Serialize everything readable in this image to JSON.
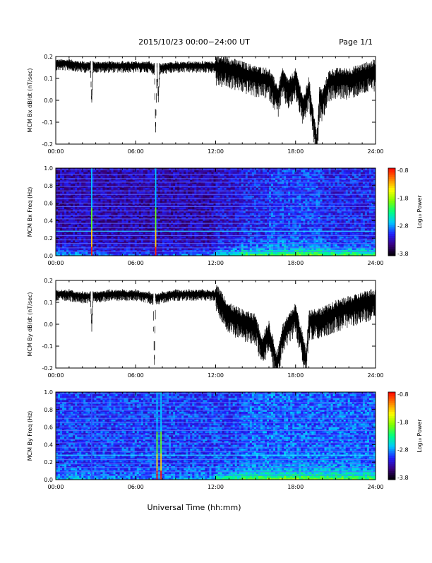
{
  "header": {
    "title": "2015/10/23  00:00−24:00 UT",
    "page": "Page 1/1"
  },
  "xaxis": {
    "label": "Universal Time (hh:mm)",
    "ticks": [
      "00:00",
      "06:00",
      "12:00",
      "18:00",
      "24:00"
    ]
  },
  "colorbar": {
    "label": "Log₁₀ Power",
    "ticks": [
      "-0.8",
      "-1.8",
      "-2.8",
      "-3.8"
    ],
    "range": [
      -3.8,
      -0.8
    ],
    "colormap": [
      "#000000",
      "#3a0080",
      "#2020ff",
      "#00c8ff",
      "#00ff80",
      "#80ff00",
      "#ffff00",
      "#ff8000",
      "#ff0000"
    ]
  },
  "chart_data": [
    {
      "type": "line",
      "ylabel": "MCM Bx dB/dt (nT/sec)",
      "yticks": [
        "0.2",
        "0.1",
        "0.0",
        "-0.1",
        "-0.2"
      ],
      "xlim": [
        0,
        24
      ],
      "ylim": [
        -0.2,
        0.2
      ],
      "series": [
        {
          "x": [
            0,
            1,
            2,
            2.6,
            2.7,
            2.8,
            4,
            5,
            6,
            7,
            7.4,
            7.5,
            7.6,
            7.7,
            7.8,
            9,
            10,
            11,
            12,
            13,
            14,
            15,
            16,
            16.7,
            17,
            17.5,
            18,
            18.6,
            19,
            19.6,
            19.8,
            20,
            20.5,
            21,
            22,
            23,
            24
          ],
          "y": [
            0.17,
            0.17,
            0.16,
            0.16,
            0.0,
            0.16,
            0.16,
            0.16,
            0.16,
            0.16,
            0.15,
            -0.12,
            0.15,
            0.02,
            0.15,
            0.16,
            0.16,
            0.16,
            0.16,
            0.15,
            0.13,
            0.11,
            0.1,
            0.02,
            0.1,
            0.05,
            0.1,
            -0.03,
            0.06,
            -0.2,
            0.02,
            0.0,
            0.09,
            0.1,
            0.1,
            0.12,
            0.14
          ]
        }
      ]
    },
    {
      "type": "heatmap",
      "ylabel": "MCM Bx Freq (Hz)",
      "yticks": [
        "1.0",
        "0.8",
        "0.6",
        "0.4",
        "0.2",
        "0.0"
      ],
      "xlim": [
        0,
        24
      ],
      "ylim": [
        0,
        1
      ],
      "zlim": [
        -3.8,
        -0.8
      ],
      "harmonic_lines_hz": [
        0.05,
        0.09,
        0.14,
        0.18,
        0.23,
        0.28,
        0.32,
        0.37,
        0.42,
        0.46,
        0.51,
        0.56,
        0.6,
        0.65,
        0.7,
        0.74,
        0.79,
        0.84,
        0.88,
        0.93,
        0.98
      ],
      "bright_band_hz": 0.28,
      "impulse_times_h": [
        2.7,
        7.5
      ],
      "time_bins_h": [
        0,
        2,
        4,
        6,
        8,
        10,
        12,
        14,
        16,
        18,
        20,
        22
      ],
      "log_power_low_freq": [
        -2.7,
        -2.8,
        -2.9,
        -2.9,
        -2.8,
        -2.8,
        -2.3,
        -2.0,
        -1.9,
        -1.8,
        -2.0,
        -2.0
      ],
      "log_power_background": [
        -3.3,
        -3.3,
        -3.3,
        -3.3,
        -3.3,
        -3.3,
        -3.2,
        -3.1,
        -3.0,
        -3.0,
        -3.1,
        -3.1
      ]
    },
    {
      "type": "line",
      "ylabel": "MCM By dB/dt (nT/sec)",
      "yticks": [
        "0.2",
        "0.1",
        "0.0",
        "-0.1",
        "-0.2"
      ],
      "xlim": [
        0,
        24
      ],
      "ylim": [
        -0.2,
        0.2
      ],
      "series": [
        {
          "x": [
            0,
            1,
            2,
            2.6,
            2.7,
            2.8,
            4,
            5,
            6,
            7,
            7.3,
            7.4,
            7.5,
            8,
            9,
            10,
            11,
            12,
            12.5,
            13,
            14,
            15,
            15.5,
            16,
            16.6,
            17,
            17.5,
            18,
            18.8,
            19,
            20,
            21,
            22,
            23,
            24
          ],
          "y": [
            0.14,
            0.14,
            0.13,
            0.13,
            0.0,
            0.13,
            0.14,
            0.14,
            0.14,
            0.13,
            0.12,
            -0.16,
            0.12,
            0.13,
            0.14,
            0.14,
            0.14,
            0.14,
            0.1,
            0.05,
            0.02,
            0.0,
            -0.1,
            -0.03,
            -0.18,
            -0.05,
            0.0,
            0.05,
            -0.16,
            0.02,
            0.03,
            0.06,
            0.08,
            0.1,
            0.12
          ]
        }
      ]
    },
    {
      "type": "heatmap",
      "ylabel": "MCM By Freq (Hz)",
      "yticks": [
        "1.0",
        "0.8",
        "0.6",
        "0.4",
        "0.2",
        "0.0"
      ],
      "xlim": [
        0,
        24
      ],
      "ylim": [
        0,
        1
      ],
      "zlim": [
        -3.8,
        -0.8
      ],
      "harmonic_lines_hz": [
        0.05,
        0.09,
        0.14,
        0.18,
        0.23,
        0.28,
        0.32,
        0.37,
        0.42,
        0.46,
        0.51,
        0.56,
        0.6,
        0.65,
        0.7,
        0.74,
        0.79,
        0.84,
        0.88,
        0.93,
        0.98
      ],
      "bright_band_hz": 0.28,
      "impulse_times_h": [
        2.7,
        7.6,
        7.9
      ],
      "time_bins_h": [
        0,
        2,
        4,
        6,
        8,
        10,
        12,
        14,
        16,
        18,
        20,
        22
      ],
      "log_power_low_freq": [
        -2.6,
        -2.7,
        -2.8,
        -2.8,
        -2.7,
        -2.7,
        -2.2,
        -1.9,
        -1.8,
        -1.8,
        -1.9,
        -2.0
      ],
      "log_power_background": [
        -3.0,
        -3.0,
        -3.0,
        -3.0,
        -3.0,
        -3.0,
        -3.0,
        -2.9,
        -2.9,
        -2.9,
        -2.9,
        -2.9
      ]
    }
  ]
}
